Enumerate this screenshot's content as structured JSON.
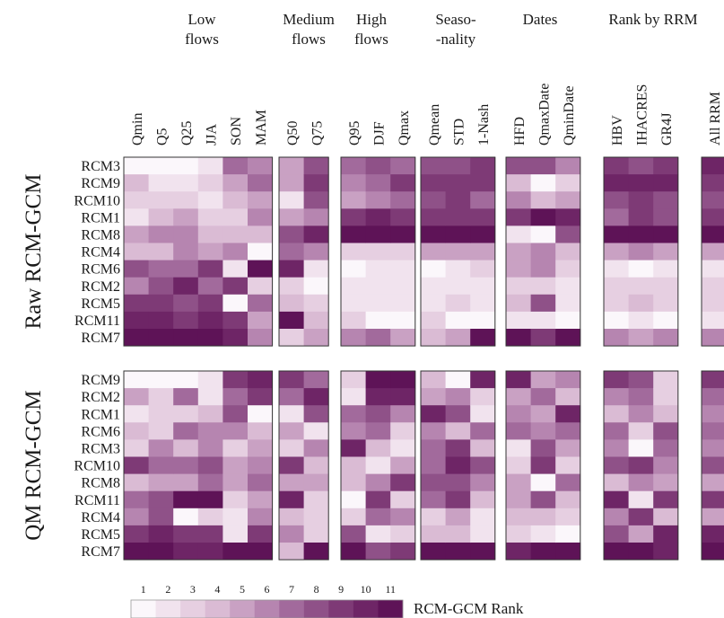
{
  "chart_data": {
    "type": "heatmap",
    "colorbar": {
      "title": "RCM-GCM Rank",
      "ticks": [
        "1",
        "2",
        "3",
        "4",
        "5",
        "6",
        "7",
        "8",
        "9",
        "10",
        "11"
      ],
      "colors": [
        "#fbf7fb",
        "#f1e3ee",
        "#e6cfe1",
        "#dabbd4",
        "#c9a1c3",
        "#b685b0",
        "#a26a9c",
        "#8f5188",
        "#7e3a76",
        "#6e2566",
        "#5e1357"
      ]
    },
    "groups": [
      {
        "label": "Low\nflows",
        "columns": [
          "Qmin",
          "Q5",
          "Q25",
          "JJA",
          "SON",
          "MAM"
        ]
      },
      {
        "label": "Medium\nflows",
        "columns": [
          "Q50",
          "Q75"
        ]
      },
      {
        "label": "High\nflows",
        "columns": [
          "Q95",
          "DJF",
          "Qmax"
        ]
      },
      {
        "label": "Seaso-\n-nality",
        "columns": [
          "Qmean",
          "STD",
          "1-Nash"
        ]
      },
      {
        "label": "Dates",
        "columns": [
          "HFD",
          "QmaxDate",
          "QminDate"
        ]
      },
      {
        "label": "Rank by RRM",
        "columns": [
          "HBV",
          "IHACRES",
          "GR4J"
        ]
      },
      {
        "label": "",
        "columns": [
          "All RRM"
        ]
      }
    ],
    "panels": [
      {
        "title": "Raw RCM-GCM",
        "rows": [
          "RCM3",
          "RCM9",
          "RCM10",
          "RCM1",
          "RCM8",
          "RCM4",
          "RCM6",
          "RCM2",
          "RCM5",
          "RCM11",
          "RCM7"
        ],
        "values": [
          [
            1,
            1,
            1,
            2,
            7,
            6,
            5,
            8,
            7,
            8,
            7,
            8,
            8,
            9,
            8,
            8,
            6,
            9,
            8,
            9,
            10
          ],
          [
            4,
            2,
            2,
            3,
            5,
            7,
            5,
            9,
            6,
            7,
            9,
            9,
            9,
            9,
            4,
            1,
            3,
            10,
            10,
            10,
            9
          ],
          [
            3,
            3,
            3,
            2,
            4,
            5,
            2,
            8,
            5,
            6,
            7,
            8,
            9,
            7,
            6,
            4,
            5,
            8,
            9,
            8,
            8
          ],
          [
            2,
            4,
            5,
            3,
            3,
            6,
            5,
            6,
            9,
            10,
            9,
            9,
            9,
            9,
            9,
            11,
            10,
            7,
            9,
            8,
            9
          ],
          [
            5,
            6,
            6,
            4,
            4,
            4,
            8,
            10,
            11,
            11,
            11,
            11,
            11,
            11,
            2,
            1,
            8,
            11,
            11,
            11,
            11
          ],
          [
            4,
            4,
            6,
            5,
            6,
            1,
            7,
            6,
            3,
            3,
            3,
            5,
            5,
            5,
            5,
            6,
            4,
            5,
            6,
            5,
            5
          ],
          [
            8,
            7,
            7,
            9,
            2,
            11,
            10,
            2,
            1,
            2,
            2,
            1,
            2,
            3,
            5,
            6,
            3,
            2,
            1,
            2,
            2
          ],
          [
            6,
            8,
            10,
            7,
            9,
            3,
            3,
            1,
            2,
            2,
            2,
            2,
            2,
            2,
            3,
            3,
            2,
            3,
            3,
            3,
            3
          ],
          [
            9,
            9,
            8,
            9,
            1,
            7,
            4,
            3,
            2,
            2,
            2,
            2,
            3,
            2,
            4,
            8,
            2,
            3,
            4,
            3,
            3
          ],
          [
            10,
            10,
            9,
            10,
            9,
            5,
            11,
            4,
            3,
            1,
            1,
            3,
            1,
            1,
            2,
            2,
            1,
            1,
            2,
            1,
            2
          ],
          [
            11,
            11,
            11,
            11,
            10,
            6,
            3,
            5,
            6,
            7,
            5,
            4,
            5,
            11,
            11,
            9,
            11,
            6,
            5,
            6,
            6
          ]
        ]
      },
      {
        "title": "QM RCM-GCM",
        "rows": [
          "RCM9",
          "RCM2",
          "RCM1",
          "RCM6",
          "RCM3",
          "RCM10",
          "RCM8",
          "RCM11",
          "RCM4",
          "RCM5",
          "RCM7"
        ],
        "values": [
          [
            1,
            1,
            1,
            2,
            9,
            10,
            9,
            7,
            3,
            11,
            11,
            4,
            1,
            10,
            10,
            5,
            6,
            9,
            8,
            3,
            9
          ],
          [
            5,
            3,
            7,
            2,
            7,
            9,
            7,
            10,
            2,
            10,
            10,
            5,
            6,
            3,
            5,
            7,
            4,
            6,
            7,
            3,
            7
          ],
          [
            2,
            3,
            3,
            4,
            8,
            1,
            2,
            8,
            7,
            8,
            6,
            10,
            8,
            2,
            6,
            5,
            10,
            4,
            6,
            4,
            6
          ],
          [
            4,
            3,
            7,
            6,
            6,
            4,
            5,
            2,
            6,
            7,
            3,
            6,
            4,
            7,
            7,
            6,
            7,
            7,
            3,
            8,
            7
          ],
          [
            3,
            6,
            4,
            6,
            3,
            5,
            3,
            6,
            10,
            4,
            2,
            7,
            9,
            4,
            2,
            8,
            5,
            6,
            1,
            7,
            6
          ],
          [
            9,
            7,
            7,
            8,
            5,
            6,
            9,
            4,
            4,
            2,
            5,
            7,
            10,
            8,
            3,
            9,
            3,
            8,
            9,
            6,
            8
          ],
          [
            4,
            5,
            5,
            7,
            5,
            7,
            5,
            5,
            4,
            6,
            9,
            8,
            8,
            6,
            5,
            1,
            7,
            4,
            6,
            5,
            5
          ],
          [
            7,
            8,
            11,
            11,
            3,
            5,
            10,
            3,
            1,
            9,
            3,
            7,
            9,
            4,
            5,
            8,
            4,
            10,
            2,
            9,
            9
          ],
          [
            6,
            8,
            1,
            3,
            2,
            6,
            4,
            3,
            3,
            7,
            6,
            3,
            5,
            2,
            4,
            4,
            3,
            6,
            9,
            4,
            5
          ],
          [
            9,
            10,
            9,
            9,
            2,
            9,
            6,
            3,
            8,
            2,
            3,
            4,
            4,
            2,
            3,
            2,
            1,
            8,
            5,
            10,
            10
          ],
          [
            11,
            11,
            10,
            10,
            11,
            11,
            4,
            11,
            11,
            8,
            9,
            11,
            11,
            11,
            10,
            11,
            11,
            11,
            11,
            10,
            11
          ]
        ]
      }
    ]
  }
}
